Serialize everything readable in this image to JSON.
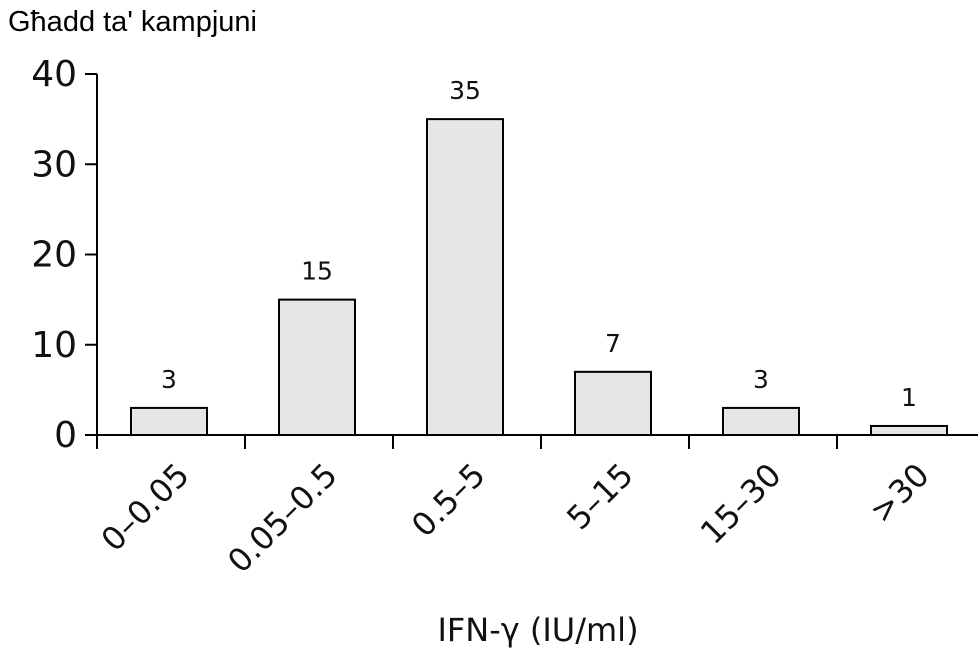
{
  "chart_data": {
    "type": "bar",
    "ylabel": "Għadd ta' kampjuni",
    "xlabel": "IFN-γ (IU/ml)",
    "categories": [
      "0–0.05",
      "0.05–0.5",
      "0.5–5",
      "5–15",
      "15–30",
      ">30"
    ],
    "values": [
      3,
      15,
      35,
      7,
      3,
      1
    ],
    "data_labels": [
      "3",
      "15",
      "35",
      "7",
      "3",
      "1"
    ],
    "ylim": [
      0,
      40
    ],
    "yticks": [
      0,
      10,
      20,
      30,
      40
    ],
    "ytick_labels": [
      "0",
      "10",
      "20",
      "30",
      "40"
    ],
    "grid": false,
    "bar_fill": "#e6e6e6",
    "bar_stroke": "#000000"
  }
}
